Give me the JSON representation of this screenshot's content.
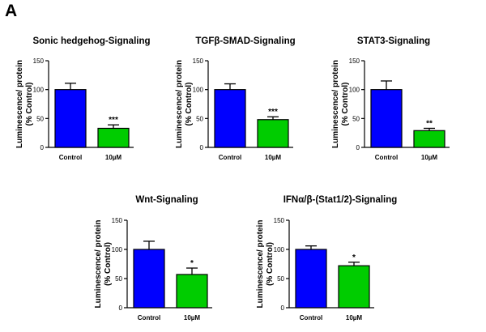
{
  "panel_label": "A",
  "colors": {
    "control": "#0000ff",
    "treatment": "#00cc00"
  },
  "chart_data": [
    {
      "type": "bar",
      "title": "Sonic hedgehog-Signaling",
      "ylabel": [
        "Luminescence/ protein",
        "(% Control)"
      ],
      "categories": [
        "Control",
        "10µM"
      ],
      "values": [
        100,
        33
      ],
      "errors": [
        11,
        6
      ],
      "significance": [
        "",
        "***"
      ],
      "ylim": [
        0,
        150
      ],
      "yticks": [
        0,
        50,
        100,
        150
      ]
    },
    {
      "type": "bar",
      "title": "TGFβ-SMAD-Signaling",
      "ylabel": [
        "Luminescence/ protein",
        "(% Control)"
      ],
      "categories": [
        "Control",
        "10µM"
      ],
      "values": [
        100,
        48
      ],
      "errors": [
        10,
        5
      ],
      "significance": [
        "",
        "***"
      ],
      "ylim": [
        0,
        150
      ],
      "yticks": [
        0,
        50,
        100,
        150
      ]
    },
    {
      "type": "bar",
      "title": "STAT3-Signaling",
      "ylabel": [
        "Luminescence/ protein",
        "(% Control)"
      ],
      "categories": [
        "Control",
        "10µM"
      ],
      "values": [
        100,
        29
      ],
      "errors": [
        15,
        4
      ],
      "significance": [
        "",
        "**"
      ],
      "ylim": [
        0,
        150
      ],
      "yticks": [
        0,
        50,
        100,
        150
      ]
    },
    {
      "type": "bar",
      "title": "Wnt-Signaling",
      "ylabel": [
        "Luminescence/ protein",
        "(% Control)"
      ],
      "categories": [
        "Control",
        "10µM"
      ],
      "values": [
        100,
        57
      ],
      "errors": [
        14,
        11
      ],
      "significance": [
        "",
        "*"
      ],
      "ylim": [
        0,
        150
      ],
      "yticks": [
        0,
        50,
        100,
        150
      ]
    },
    {
      "type": "bar",
      "title": "IFNα/β-(Stat1/2)-Signaling",
      "ylabel": [
        "Luminescence/ protein",
        "(% Control)"
      ],
      "categories": [
        "Control",
        "10µM"
      ],
      "values": [
        100,
        72
      ],
      "errors": [
        6,
        6
      ],
      "significance": [
        "",
        "*"
      ],
      "ylim": [
        0,
        150
      ],
      "yticks": [
        0,
        50,
        100,
        150
      ]
    }
  ]
}
